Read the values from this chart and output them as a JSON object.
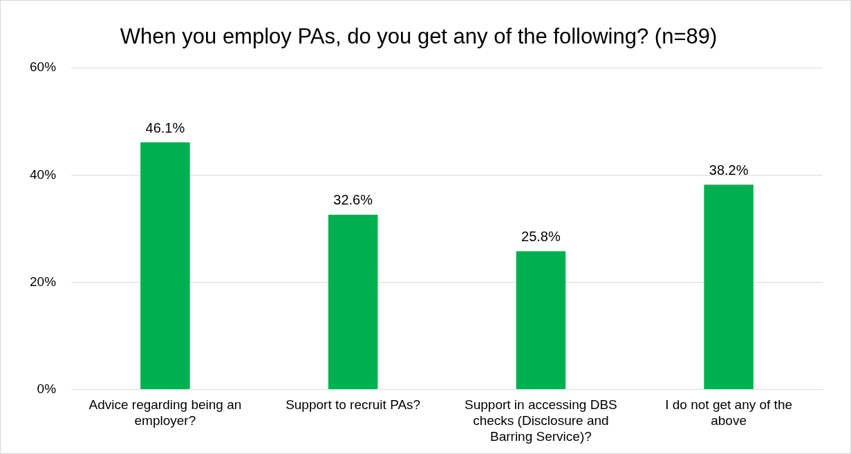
{
  "chart_data": {
    "type": "bar",
    "title": "When you employ PAs, do you get any of the following? (n=89)",
    "categories": [
      "Advice regarding being an employer?",
      "Support to recruit PAs?",
      "Support in accessing DBS checks (Disclosure and Barring Service)?",
      "I do not get any of the above"
    ],
    "values": [
      46.1,
      32.6,
      25.8,
      38.2
    ],
    "value_labels": [
      "46.1%",
      "32.6%",
      "25.8%",
      "38.2%"
    ],
    "color": "#00b050",
    "ylim": [
      0,
      60
    ],
    "yticks": [
      {
        "value": 0,
        "label": "0%"
      },
      {
        "value": 20,
        "label": "20%"
      },
      {
        "value": 40,
        "label": "40%"
      },
      {
        "value": 60,
        "label": "60%"
      }
    ],
    "grid": "y",
    "legend": false
  }
}
